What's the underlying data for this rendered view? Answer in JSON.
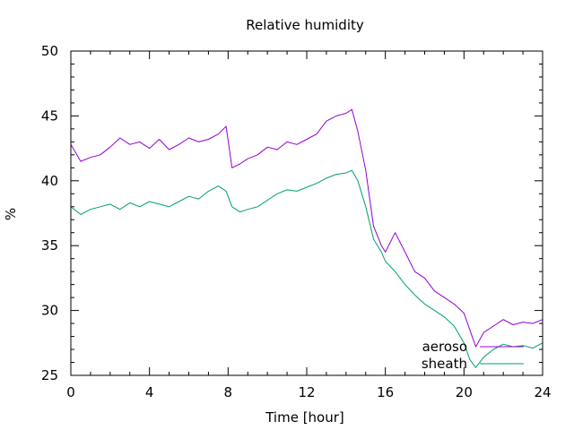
{
  "chart_data": {
    "type": "line",
    "title": "Relative humidity",
    "xlabel": "Time [hour]",
    "ylabel": "%",
    "xlim": [
      0,
      24
    ],
    "ylim": [
      25,
      50
    ],
    "xticks": [
      0,
      4,
      8,
      12,
      16,
      20,
      24
    ],
    "yticks": [
      25,
      30,
      35,
      40,
      45,
      50
    ],
    "x_minor_step": 1,
    "y_minor_step": 1,
    "grid": false,
    "legend_position": "bottom-right",
    "series": [
      {
        "name": "aerosol",
        "label_shown": "aeroso",
        "color": "#9400d3",
        "x": [
          0,
          0.5,
          1,
          1.5,
          2,
          2.5,
          3,
          3.5,
          4,
          4.5,
          5,
          5.5,
          6,
          6.5,
          7,
          7.5,
          7.9,
          8.2,
          8.6,
          9,
          9.5,
          10,
          10.5,
          11,
          11.5,
          12,
          12.5,
          13,
          13.5,
          14,
          14.3,
          14.6,
          15,
          15.4,
          15.8,
          16,
          16.5,
          17,
          17.5,
          18,
          18.5,
          19,
          19.5,
          20,
          20.3,
          20.6,
          21,
          21.5,
          22,
          22.5,
          23,
          23.5,
          24
        ],
        "y": [
          42.8,
          41.5,
          41.8,
          42.0,
          42.6,
          43.3,
          42.8,
          43.0,
          42.5,
          43.2,
          42.4,
          42.8,
          43.3,
          43.0,
          43.2,
          43.6,
          44.2,
          41.0,
          41.3,
          41.7,
          42.0,
          42.6,
          42.4,
          43.0,
          42.8,
          43.2,
          43.6,
          44.6,
          45.0,
          45.2,
          45.5,
          43.8,
          40.8,
          36.5,
          35.0,
          34.5,
          36.0,
          34.5,
          33.0,
          32.5,
          31.5,
          31.0,
          30.5,
          29.8,
          28.5,
          27.2,
          28.3,
          28.8,
          29.3,
          28.9,
          29.1,
          29.0,
          29.3
        ]
      },
      {
        "name": "sheath",
        "label_shown": "sheath",
        "color": "#009e73",
        "x": [
          0,
          0.5,
          1,
          1.5,
          2,
          2.5,
          3,
          3.5,
          4,
          4.5,
          5,
          5.5,
          6,
          6.5,
          7,
          7.5,
          7.9,
          8.2,
          8.6,
          9,
          9.5,
          10,
          10.5,
          11,
          11.5,
          12,
          12.5,
          13,
          13.5,
          14,
          14.3,
          14.6,
          15,
          15.4,
          15.8,
          16,
          16.5,
          17,
          17.5,
          18,
          18.5,
          19,
          19.5,
          20,
          20.3,
          20.6,
          21,
          21.5,
          22,
          22.5,
          23,
          23.5,
          24
        ],
        "y": [
          38.0,
          37.4,
          37.8,
          38.0,
          38.2,
          37.8,
          38.3,
          38.0,
          38.4,
          38.2,
          38.0,
          38.4,
          38.8,
          38.6,
          39.2,
          39.6,
          39.2,
          38.0,
          37.6,
          37.8,
          38.0,
          38.5,
          39.0,
          39.3,
          39.2,
          39.5,
          39.8,
          40.2,
          40.5,
          40.6,
          40.8,
          40.0,
          38.0,
          35.5,
          34.5,
          33.8,
          33.0,
          32.0,
          31.2,
          30.5,
          30.0,
          29.5,
          28.8,
          27.5,
          26.2,
          25.6,
          26.4,
          27.0,
          27.4,
          27.2,
          27.3,
          27.1,
          27.5
        ]
      }
    ]
  }
}
